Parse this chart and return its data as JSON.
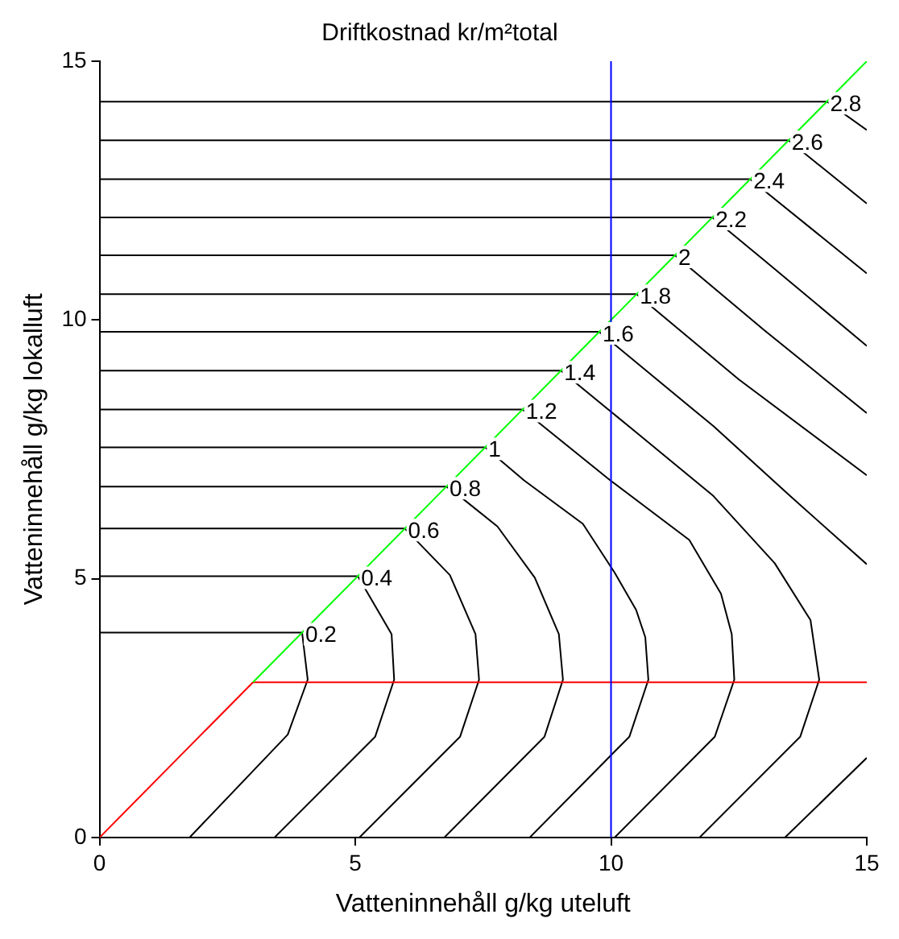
{
  "chart_data": {
    "type": "line",
    "title": "Driftkostnad kr/m²total",
    "xlabel": "Vatteninnehåll g/kg uteluft",
    "ylabel": "Vatteninnehåll g/kg lokalluft",
    "xlim": [
      0,
      15
    ],
    "ylim": [
      0,
      15
    ],
    "xticks": [
      0,
      5,
      10,
      15
    ],
    "yticks": [
      0,
      5,
      10,
      15
    ],
    "grid": false,
    "legend": false,
    "marker": "none",
    "line_style": "solid",
    "ref_lines": [
      {
        "axis": "x",
        "value": 10,
        "color": "#0000ff"
      }
    ],
    "series": [
      {
        "color": "#ff0000",
        "x": [
          0,
          3
        ],
        "values": [
          0,
          3
        ]
      },
      {
        "color": "#00ff00",
        "x": [
          3,
          15
        ],
        "values": [
          3,
          15
        ]
      },
      {
        "color": "#ff0000",
        "x": [
          3,
          15
        ],
        "values": [
          3,
          3
        ]
      },
      {
        "name": "0.2",
        "color": "#000000",
        "x": [
          0,
          3.96,
          4.07,
          3.68,
          1.76
        ],
        "values": [
          3.96,
          3.96,
          3.05,
          1.99,
          0
        ]
      },
      {
        "name": "0.4",
        "color": "#000000",
        "x": [
          0,
          5.05,
          5.71,
          5.76,
          5.39,
          3.42
        ],
        "values": [
          5.05,
          5.05,
          3.93,
          3.05,
          1.95,
          0
        ]
      },
      {
        "name": "0.6",
        "color": "#000000",
        "x": [
          0,
          5.97,
          6.85,
          7.35,
          7.42,
          7.05,
          5.08
        ],
        "values": [
          5.97,
          5.97,
          5.07,
          3.93,
          3.05,
          1.95,
          0
        ]
      },
      {
        "name": "0.8",
        "color": "#000000",
        "x": [
          0,
          6.78,
          7.06,
          7.78,
          8.51,
          8.98,
          9.06,
          8.7,
          6.74
        ],
        "values": [
          6.78,
          6.78,
          6.58,
          6.01,
          5.02,
          3.93,
          3.05,
          1.95,
          0
        ]
      },
      {
        "name": "1",
        "color": "#000000",
        "x": [
          0,
          7.54,
          8.3,
          9.45,
          10.07,
          10.49,
          10.67,
          10.73,
          10.36,
          8.41
        ],
        "values": [
          7.54,
          7.54,
          6.9,
          6.06,
          5.12,
          4.4,
          3.87,
          3.05,
          1.95,
          0
        ]
      },
      {
        "name": "1.2",
        "color": "#000000",
        "x": [
          0,
          8.27,
          8.82,
          10,
          11.53,
          12.15,
          12.36,
          12.41,
          12.03,
          10.07
        ],
        "values": [
          8.27,
          8.27,
          7.83,
          6.89,
          5.75,
          4.71,
          3.93,
          3.05,
          1.95,
          0
        ]
      },
      {
        "name": "1.4",
        "color": "#000000",
        "x": [
          0,
          9.02,
          10.49,
          12,
          13.2,
          13.9,
          14.07,
          13.7,
          11.73
        ],
        "values": [
          9.02,
          9.02,
          7.83,
          6.6,
          5.3,
          4.2,
          3.05,
          1.95,
          0
        ]
      },
      {
        "name": "1.6",
        "color": "#000000",
        "x": [
          0,
          9.77,
          12,
          13.5,
          15
        ],
        "values": [
          9.77,
          9.77,
          7.95,
          6.6,
          5.28
        ]
      },
      {
        "color": "#000000",
        "x": [
          13.4,
          15
        ],
        "values": [
          0,
          1.54
        ]
      },
      {
        "name": "1.8",
        "color": "#000000",
        "x": [
          0,
          10.5,
          12.5,
          15
        ],
        "values": [
          10.5,
          10.5,
          8.85,
          7.0
        ]
      },
      {
        "name": "2",
        "color": "#000000",
        "x": [
          0,
          11.25,
          13,
          15
        ],
        "values": [
          11.25,
          11.25,
          9.8,
          8.2
        ]
      },
      {
        "name": "2.2",
        "color": "#000000",
        "x": [
          0,
          11.98,
          13,
          15
        ],
        "values": [
          11.98,
          11.98,
          11.15,
          9.5
        ]
      },
      {
        "name": "2.4",
        "color": "#000000",
        "x": [
          0,
          12.72,
          15
        ],
        "values": [
          12.72,
          12.72,
          10.9
        ]
      },
      {
        "name": "2.6",
        "color": "#000000",
        "x": [
          0,
          13.47,
          15
        ],
        "values": [
          13.47,
          13.47,
          12.25
        ]
      },
      {
        "name": "2.8",
        "color": "#000000",
        "x": [
          0,
          14.22,
          15
        ],
        "values": [
          14.22,
          14.22,
          13.67
        ]
      }
    ]
  }
}
